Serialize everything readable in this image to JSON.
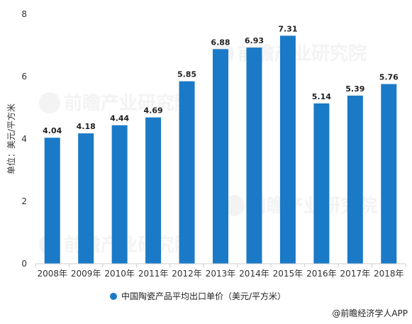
{
  "chart_data": {
    "type": "bar",
    "categories": [
      "2008年",
      "2009年",
      "2010年",
      "2011年",
      "2012年",
      "2013年",
      "2014年",
      "2015年",
      "2016年",
      "2017年",
      "2018年"
    ],
    "series": [
      {
        "name": "中国陶瓷产品平均出口单价（美元/平方米）",
        "values": [
          4.04,
          4.18,
          4.44,
          4.69,
          5.85,
          6.88,
          6.93,
          7.31,
          5.14,
          5.39,
          5.76
        ],
        "color": "#1a7ac7"
      }
    ],
    "value_labels": [
      "4.04",
      "4.18",
      "4.44",
      "4.69",
      "5.85",
      "6.88",
      "6.93",
      "7.31",
      "5.14",
      "5.39",
      "5.76"
    ],
    "title": "",
    "xlabel": "",
    "ylabel": "单位：美元/平方米",
    "ylim": [
      0,
      8
    ],
    "yticks": [
      0,
      2,
      4,
      6,
      8
    ],
    "ytick_labels": [
      "0",
      "2",
      "4",
      "6",
      "8"
    ],
    "grid": false,
    "legend_position": "bottom-center"
  },
  "source": "@前瞻经济学人APP",
  "watermark": "前瞻产业研究院",
  "colors": {
    "bar": "#1a7ac7",
    "axis": "#cccccc",
    "text": "#333333"
  }
}
